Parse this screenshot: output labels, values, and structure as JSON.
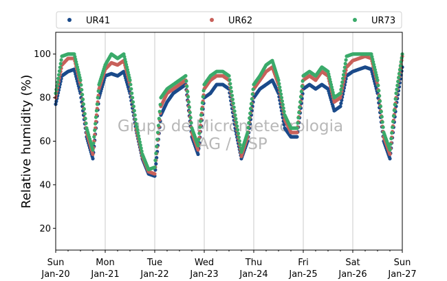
{
  "chart_data": {
    "type": "scatter",
    "ylabel": "Relative humidity (%)",
    "ylim": [
      10,
      110
    ],
    "yticks": [
      20,
      40,
      60,
      80,
      100
    ],
    "xlim": [
      "2022-01-20",
      "2022-01-27"
    ],
    "xticks": [
      {
        "date": "2022-01-20",
        "day": "Sun",
        "label": "Jan-20"
      },
      {
        "date": "2022-01-21",
        "day": "Mon",
        "label": "Jan-21"
      },
      {
        "date": "2022-01-22",
        "day": "Tue",
        "label": "Jan-22"
      },
      {
        "date": "2022-01-23",
        "day": "Wed",
        "label": "Jan-23"
      },
      {
        "date": "2022-01-24",
        "day": "Thu",
        "label": "Jan-24"
      },
      {
        "date": "2022-01-25",
        "day": "Fri",
        "label": "Jan-25"
      },
      {
        "date": "2022-01-26",
        "day": "Sat",
        "label": "Jan-26"
      },
      {
        "date": "2022-01-27",
        "day": "Sun",
        "label": "Jan-27"
      }
    ],
    "grid": "vertical",
    "legend": "top",
    "watermark": [
      "Grupo de Micrometeorologia",
      "IAG / USP"
    ],
    "x": [
      "2022-01-20 00:00",
      "2022-01-20 03:00",
      "2022-01-20 06:00",
      "2022-01-20 09:00",
      "2022-01-20 12:00",
      "2022-01-20 15:00",
      "2022-01-20 18:00",
      "2022-01-20 21:00",
      "2022-01-21 00:00",
      "2022-01-21 03:00",
      "2022-01-21 06:00",
      "2022-01-21 09:00",
      "2022-01-21 12:00",
      "2022-01-21 15:00",
      "2022-01-21 18:00",
      "2022-01-21 21:00",
      "2022-01-22 00:00",
      "2022-01-22 03:00",
      "2022-01-22 06:00",
      "2022-01-22 09:00",
      "2022-01-22 12:00",
      "2022-01-22 15:00",
      "2022-01-22 18:00",
      "2022-01-22 21:00",
      "2022-01-23 00:00",
      "2022-01-23 03:00",
      "2022-01-23 06:00",
      "2022-01-23 09:00",
      "2022-01-23 12:00",
      "2022-01-23 15:00",
      "2022-01-23 18:00",
      "2022-01-23 21:00",
      "2022-01-24 00:00",
      "2022-01-24 03:00",
      "2022-01-24 06:00",
      "2022-01-24 09:00",
      "2022-01-24 12:00",
      "2022-01-24 15:00",
      "2022-01-24 18:00",
      "2022-01-24 21:00",
      "2022-01-25 00:00",
      "2022-01-25 03:00",
      "2022-01-25 06:00",
      "2022-01-25 09:00",
      "2022-01-25 12:00",
      "2022-01-25 15:00",
      "2022-01-25 18:00",
      "2022-01-25 21:00",
      "2022-01-26 00:00",
      "2022-01-26 03:00",
      "2022-01-26 06:00",
      "2022-01-26 09:00",
      "2022-01-26 12:00",
      "2022-01-26 15:00",
      "2022-01-26 18:00",
      "2022-01-26 21:00",
      "2022-01-27 00:00"
    ],
    "series": [
      {
        "name": "UR41",
        "color": "#1a4a8a",
        "values": [
          77,
          90,
          92,
          93,
          82,
          62,
          52,
          80,
          90,
          91,
          90,
          92,
          82,
          65,
          52,
          45,
          44,
          72,
          78,
          82,
          84,
          86,
          62,
          54,
          80,
          82,
          86,
          86,
          84,
          66,
          52,
          60,
          80,
          84,
          86,
          88,
          82,
          66,
          62,
          62,
          84,
          86,
          84,
          86,
          84,
          74,
          76,
          90,
          92,
          93,
          94,
          93,
          82,
          60,
          52,
          76,
          94
        ]
      },
      {
        "name": "UR62",
        "color": "#c8605a",
        "values": [
          80,
          95,
          98,
          98,
          86,
          64,
          54,
          84,
          93,
          96,
          95,
          97,
          86,
          66,
          53,
          46,
          45,
          76,
          82,
          84,
          86,
          88,
          64,
          56,
          84,
          88,
          90,
          90,
          88,
          70,
          53,
          62,
          84,
          88,
          92,
          94,
          86,
          70,
          64,
          64,
          88,
          90,
          88,
          92,
          90,
          78,
          80,
          94,
          97,
          98,
          99,
          98,
          86,
          62,
          54,
          80,
          99
        ]
      },
      {
        "name": "UR73",
        "color": "#3aaa6a",
        "values": [
          82,
          99,
          100,
          100,
          88,
          66,
          56,
          86,
          95,
          100,
          98,
          100,
          88,
          68,
          54,
          47,
          48,
          80,
          84,
          86,
          88,
          90,
          66,
          58,
          86,
          90,
          92,
          92,
          90,
          72,
          55,
          64,
          86,
          90,
          95,
          97,
          88,
          72,
          66,
          66,
          90,
          92,
          90,
          94,
          92,
          80,
          82,
          99,
          100,
          100,
          100,
          100,
          88,
          64,
          56,
          82,
          100
        ]
      }
    ]
  }
}
